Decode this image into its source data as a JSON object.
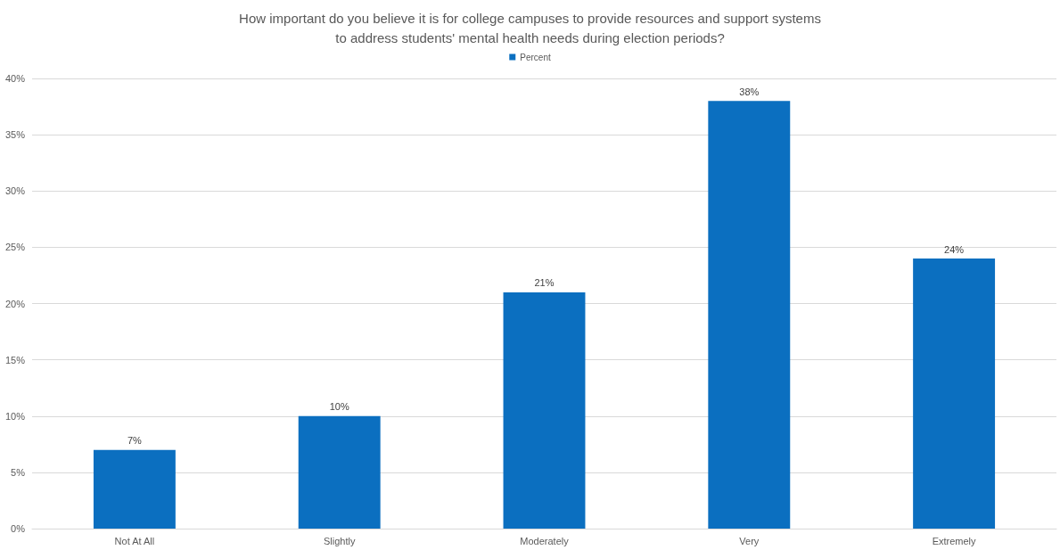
{
  "chart_data": {
    "type": "bar",
    "title": "How important do you believe it is for college campuses to provide resources and support systems\nto address students' mental health needs during election periods?",
    "categories": [
      "Not At All",
      "Slightly",
      "Moderately",
      "Very",
      "Extremely"
    ],
    "series": [
      {
        "name": "Percent",
        "color": "#0b6fc0",
        "values": [
          7,
          10,
          21,
          38,
          24
        ],
        "value_labels": [
          "7%",
          "10%",
          "21%",
          "38%",
          "24%"
        ]
      }
    ],
    "ylim": [
      0,
      40
    ],
    "yticks": [
      {
        "value": 0,
        "label": "0%"
      },
      {
        "value": 5,
        "label": "5%"
      },
      {
        "value": 10,
        "label": "10%"
      },
      {
        "value": 15,
        "label": "15%"
      },
      {
        "value": 20,
        "label": "20%"
      },
      {
        "value": 25,
        "label": "25%"
      },
      {
        "value": 30,
        "label": "30%"
      },
      {
        "value": 35,
        "label": "35%"
      },
      {
        "value": 40,
        "label": "40%"
      }
    ],
    "grid": "y",
    "legend": "top"
  }
}
